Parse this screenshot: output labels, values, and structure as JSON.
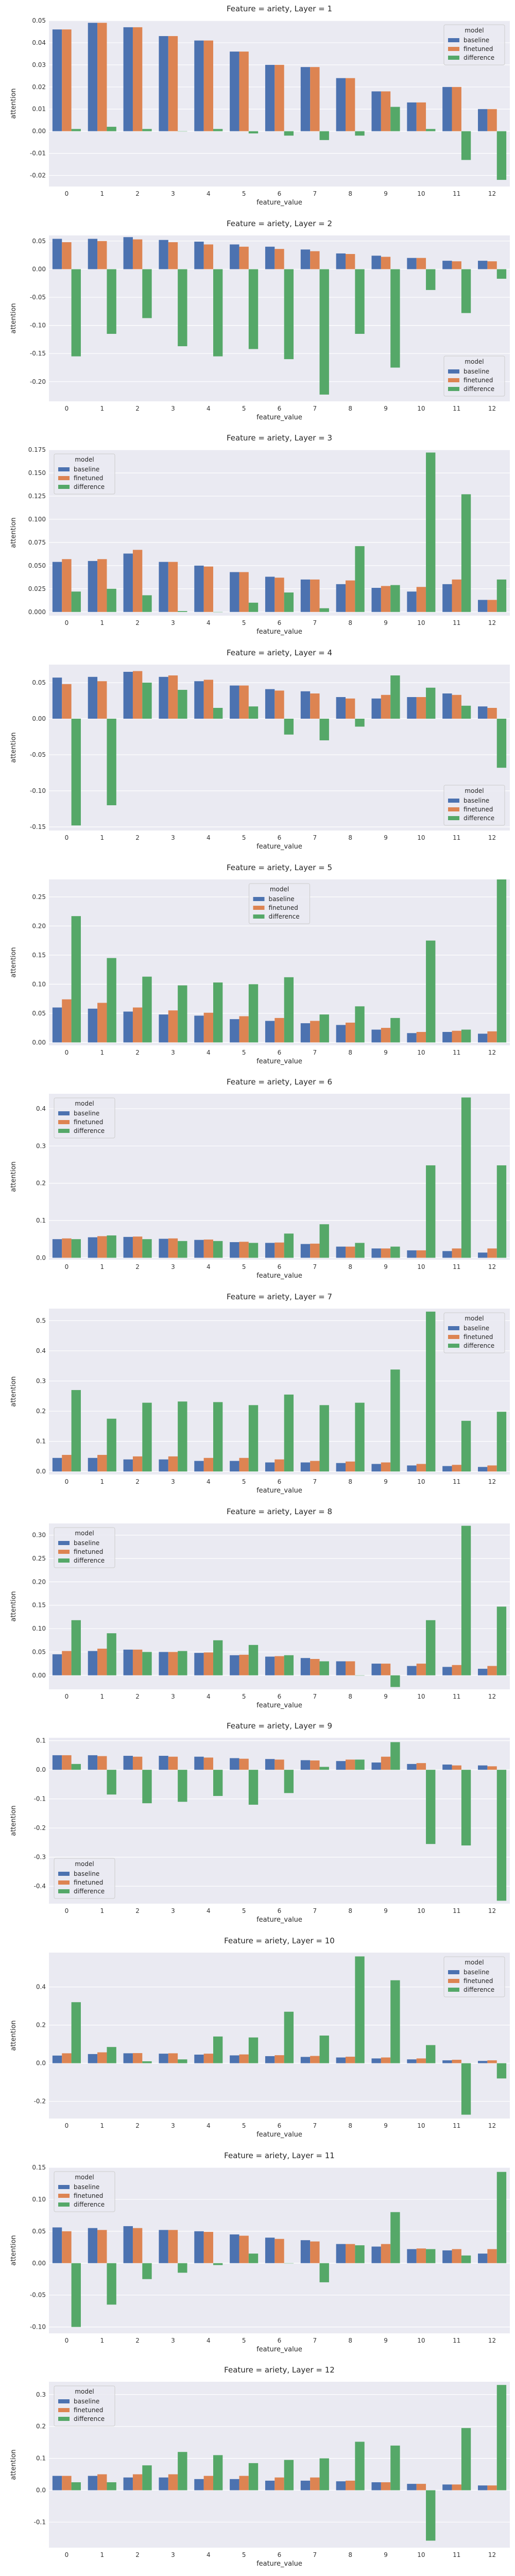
{
  "palette": {
    "baseline": "#4c72b0",
    "finetuned": "#dd8452",
    "difference": "#55a868",
    "plot_bg": "#eaeaf2",
    "grid": "#ffffff"
  },
  "chart_data": [
    {
      "type": "bar",
      "title": "Feature = ariety, Layer = 1",
      "xlabel": "feature_value",
      "ylabel": "attention",
      "categories": [
        "0",
        "1",
        "2",
        "3",
        "4",
        "5",
        "6",
        "7",
        "8",
        "9",
        "10",
        "11",
        "12"
      ],
      "ylim": [
        -0.025,
        0.05
      ],
      "yticks": [
        -0.02,
        -0.01,
        0.0,
        0.01,
        0.02,
        0.03,
        0.04,
        0.05
      ],
      "tick_decimals": 2,
      "legend_title": "model",
      "legend_position": "top-right",
      "series": [
        {
          "name": "baseline",
          "values": [
            0.046,
            0.049,
            0.047,
            0.043,
            0.041,
            0.036,
            0.03,
            0.029,
            0.024,
            0.018,
            0.013,
            0.02,
            0.01
          ]
        },
        {
          "name": "finetuned",
          "values": [
            0.046,
            0.049,
            0.047,
            0.043,
            0.041,
            0.036,
            0.03,
            0.029,
            0.024,
            0.018,
            0.013,
            0.02,
            0.01
          ]
        },
        {
          "name": "difference",
          "values": [
            0.001,
            0.002,
            0.001,
            0.0,
            0.001,
            -0.001,
            -0.002,
            -0.004,
            -0.002,
            0.011,
            0.001,
            -0.013,
            -0.022
          ]
        }
      ]
    },
    {
      "type": "bar",
      "title": "Feature = ariety, Layer = 2",
      "xlabel": "feature_value",
      "ylabel": "attention",
      "categories": [
        "0",
        "1",
        "2",
        "3",
        "4",
        "5",
        "6",
        "7",
        "8",
        "9",
        "10",
        "11",
        "12"
      ],
      "ylim": [
        -0.235,
        0.06
      ],
      "yticks": [
        -0.2,
        -0.15,
        -0.1,
        -0.05,
        0.0,
        0.05
      ],
      "tick_decimals": 2,
      "legend_title": "model",
      "legend_position": "bottom-right",
      "series": [
        {
          "name": "baseline",
          "values": [
            0.054,
            0.054,
            0.057,
            0.052,
            0.049,
            0.044,
            0.04,
            0.035,
            0.028,
            0.024,
            0.02,
            0.015,
            0.015
          ]
        },
        {
          "name": "finetuned",
          "values": [
            0.048,
            0.05,
            0.053,
            0.048,
            0.044,
            0.04,
            0.036,
            0.032,
            0.027,
            0.022,
            0.02,
            0.014,
            0.014
          ]
        },
        {
          "name": "difference",
          "values": [
            -0.155,
            -0.115,
            -0.087,
            -0.137,
            -0.155,
            -0.142,
            -0.16,
            -0.223,
            -0.115,
            -0.175,
            -0.037,
            -0.078,
            -0.017
          ]
        }
      ]
    },
    {
      "type": "bar",
      "title": "Feature = ariety, Layer = 3",
      "xlabel": "feature_value",
      "ylabel": "attention",
      "categories": [
        "0",
        "1",
        "2",
        "3",
        "4",
        "5",
        "6",
        "7",
        "8",
        "9",
        "10",
        "11",
        "12"
      ],
      "ylim": [
        -0.004,
        0.175
      ],
      "yticks": [
        0.0,
        0.025,
        0.05,
        0.075,
        0.1,
        0.125,
        0.15,
        0.175
      ],
      "tick_decimals": 3,
      "legend_title": "model",
      "legend_position": "top-left",
      "series": [
        {
          "name": "baseline",
          "values": [
            0.054,
            0.055,
            0.063,
            0.054,
            0.05,
            0.043,
            0.038,
            0.035,
            0.03,
            0.026,
            0.022,
            0.03,
            0.013
          ]
        },
        {
          "name": "finetuned",
          "values": [
            0.057,
            0.057,
            0.067,
            0.054,
            0.049,
            0.043,
            0.037,
            0.035,
            0.034,
            0.028,
            0.027,
            0.035,
            0.013
          ]
        },
        {
          "name": "difference",
          "values": [
            0.022,
            0.025,
            0.018,
            0.001,
            0.0,
            0.01,
            0.021,
            0.004,
            0.071,
            0.029,
            0.172,
            0.127,
            0.035
          ]
        }
      ]
    },
    {
      "type": "bar",
      "title": "Feature = ariety, Layer = 4",
      "xlabel": "feature_value",
      "ylabel": "attention",
      "categories": [
        "0",
        "1",
        "2",
        "3",
        "4",
        "5",
        "6",
        "7",
        "8",
        "9",
        "10",
        "11",
        "12"
      ],
      "ylim": [
        -0.155,
        0.075
      ],
      "yticks": [
        -0.15,
        -0.1,
        -0.05,
        0.0,
        0.05
      ],
      "tick_decimals": 2,
      "legend_title": "model",
      "legend_position": "bottom-right",
      "series": [
        {
          "name": "baseline",
          "values": [
            0.057,
            0.058,
            0.065,
            0.058,
            0.052,
            0.046,
            0.041,
            0.038,
            0.03,
            0.028,
            0.03,
            0.035,
            0.017
          ]
        },
        {
          "name": "finetuned",
          "values": [
            0.048,
            0.052,
            0.066,
            0.06,
            0.054,
            0.046,
            0.039,
            0.035,
            0.028,
            0.033,
            0.03,
            0.033,
            0.015
          ]
        },
        {
          "name": "difference",
          "values": [
            -0.148,
            -0.12,
            0.05,
            0.04,
            0.015,
            0.017,
            -0.022,
            -0.03,
            -0.011,
            0.06,
            0.043,
            0.018,
            -0.068
          ]
        }
      ]
    },
    {
      "type": "bar",
      "title": "Feature = ariety, Layer = 5",
      "xlabel": "feature_value",
      "ylabel": "attention",
      "categories": [
        "0",
        "1",
        "2",
        "3",
        "4",
        "5",
        "6",
        "7",
        "8",
        "9",
        "10",
        "11",
        "12"
      ],
      "ylim": [
        -0.005,
        0.28
      ],
      "yticks": [
        0.0,
        0.05,
        0.1,
        0.15,
        0.2,
        0.25
      ],
      "tick_decimals": 2,
      "legend_title": "model",
      "legend_position": "top-center",
      "series": [
        {
          "name": "baseline",
          "values": [
            0.06,
            0.058,
            0.053,
            0.048,
            0.046,
            0.04,
            0.037,
            0.033,
            0.03,
            0.022,
            0.016,
            0.018,
            0.015
          ]
        },
        {
          "name": "finetuned",
          "values": [
            0.074,
            0.068,
            0.06,
            0.055,
            0.051,
            0.045,
            0.042,
            0.037,
            0.034,
            0.025,
            0.018,
            0.02,
            0.019
          ]
        },
        {
          "name": "difference",
          "values": [
            0.217,
            0.145,
            0.113,
            0.098,
            0.103,
            0.1,
            0.112,
            0.048,
            0.062,
            0.042,
            0.175,
            0.022,
            0.28
          ]
        }
      ]
    },
    {
      "type": "bar",
      "title": "Feature = ariety, Layer = 6",
      "xlabel": "feature_value",
      "ylabel": "attention",
      "categories": [
        "0",
        "1",
        "2",
        "3",
        "4",
        "5",
        "6",
        "7",
        "8",
        "9",
        "10",
        "11",
        "12"
      ],
      "ylim": [
        -0.005,
        0.44
      ],
      "yticks": [
        0.0,
        0.1,
        0.2,
        0.3,
        0.4
      ],
      "tick_decimals": 1,
      "legend_title": "model",
      "legend_position": "top-left",
      "series": [
        {
          "name": "baseline",
          "values": [
            0.05,
            0.055,
            0.056,
            0.051,
            0.048,
            0.042,
            0.04,
            0.037,
            0.03,
            0.025,
            0.02,
            0.018,
            0.014
          ]
        },
        {
          "name": "finetuned",
          "values": [
            0.052,
            0.058,
            0.057,
            0.052,
            0.049,
            0.043,
            0.041,
            0.038,
            0.03,
            0.025,
            0.02,
            0.025,
            0.025
          ]
        },
        {
          "name": "difference",
          "values": [
            0.05,
            0.06,
            0.05,
            0.045,
            0.045,
            0.04,
            0.065,
            0.09,
            0.04,
            0.03,
            0.248,
            0.43,
            0.248
          ]
        }
      ]
    },
    {
      "type": "bar",
      "title": "Feature = ariety, Layer = 7",
      "xlabel": "feature_value",
      "ylabel": "attention",
      "categories": [
        "0",
        "1",
        "2",
        "3",
        "4",
        "5",
        "6",
        "7",
        "8",
        "9",
        "10",
        "11",
        "12"
      ],
      "ylim": [
        -0.01,
        0.54
      ],
      "yticks": [
        0.0,
        0.1,
        0.2,
        0.3,
        0.4,
        0.5
      ],
      "tick_decimals": 1,
      "legend_title": "model",
      "legend_position": "top-right",
      "series": [
        {
          "name": "baseline",
          "values": [
            0.045,
            0.045,
            0.04,
            0.04,
            0.035,
            0.035,
            0.03,
            0.03,
            0.028,
            0.025,
            0.02,
            0.018,
            0.015
          ]
        },
        {
          "name": "finetuned",
          "values": [
            0.055,
            0.055,
            0.05,
            0.05,
            0.045,
            0.045,
            0.04,
            0.035,
            0.033,
            0.03,
            0.025,
            0.022,
            0.02
          ]
        },
        {
          "name": "difference",
          "values": [
            0.27,
            0.175,
            0.228,
            0.232,
            0.23,
            0.22,
            0.255,
            0.22,
            0.228,
            0.338,
            0.53,
            0.168,
            0.198
          ]
        }
      ]
    },
    {
      "type": "bar",
      "title": "Feature = ariety, Layer = 8",
      "xlabel": "feature_value",
      "ylabel": "attention",
      "categories": [
        "0",
        "1",
        "2",
        "3",
        "4",
        "5",
        "6",
        "7",
        "8",
        "9",
        "10",
        "11",
        "12"
      ],
      "ylim": [
        -0.03,
        0.325
      ],
      "yticks": [
        0.0,
        0.05,
        0.1,
        0.15,
        0.2,
        0.25,
        0.3
      ],
      "tick_decimals": 2,
      "legend_title": "model",
      "legend_position": "top-left",
      "series": [
        {
          "name": "baseline",
          "values": [
            0.045,
            0.052,
            0.055,
            0.05,
            0.048,
            0.043,
            0.04,
            0.037,
            0.03,
            0.025,
            0.02,
            0.018,
            0.014
          ]
        },
        {
          "name": "finetuned",
          "values": [
            0.052,
            0.057,
            0.055,
            0.05,
            0.049,
            0.044,
            0.041,
            0.035,
            0.03,
            0.025,
            0.025,
            0.022,
            0.02
          ]
        },
        {
          "name": "difference",
          "values": [
            0.118,
            0.09,
            0.05,
            0.052,
            0.075,
            0.065,
            0.043,
            0.03,
            0.0,
            -0.025,
            0.118,
            0.32,
            0.147
          ]
        }
      ]
    },
    {
      "type": "bar",
      "title": "Feature = ariety, Layer = 9",
      "xlabel": "feature_value",
      "ylabel": "attention",
      "categories": [
        "0",
        "1",
        "2",
        "3",
        "4",
        "5",
        "6",
        "7",
        "8",
        "9",
        "10",
        "11",
        "12"
      ],
      "ylim": [
        -0.46,
        0.11
      ],
      "yticks": [
        -0.4,
        -0.3,
        -0.2,
        -0.1,
        0.0,
        0.1
      ],
      "tick_decimals": 1,
      "legend_title": "model",
      "legend_position": "bottom-left",
      "series": [
        {
          "name": "baseline",
          "values": [
            0.05,
            0.05,
            0.048,
            0.048,
            0.045,
            0.04,
            0.037,
            0.033,
            0.03,
            0.025,
            0.02,
            0.018,
            0.015
          ]
        },
        {
          "name": "finetuned",
          "values": [
            0.05,
            0.047,
            0.045,
            0.045,
            0.042,
            0.038,
            0.035,
            0.032,
            0.035,
            0.045,
            0.023,
            0.015,
            0.012
          ]
        },
        {
          "name": "difference",
          "values": [
            0.02,
            -0.085,
            -0.115,
            -0.11,
            -0.09,
            -0.12,
            -0.08,
            0.01,
            0.035,
            0.095,
            -0.255,
            -0.26,
            -0.45
          ]
        }
      ]
    },
    {
      "type": "bar",
      "title": "Feature = ariety, Layer = 10",
      "xlabel": "feature_value",
      "ylabel": "attention",
      "categories": [
        "0",
        "1",
        "2",
        "3",
        "4",
        "5",
        "6",
        "7",
        "8",
        "9",
        "10",
        "11",
        "12"
      ],
      "ylim": [
        -0.29,
        0.58
      ],
      "yticks": [
        -0.2,
        0.0,
        0.2,
        0.4
      ],
      "tick_decimals": 1,
      "legend_title": "model",
      "legend_position": "top-right",
      "series": [
        {
          "name": "baseline",
          "values": [
            0.04,
            0.048,
            0.052,
            0.05,
            0.045,
            0.041,
            0.037,
            0.033,
            0.03,
            0.025,
            0.02,
            0.015,
            0.012
          ]
        },
        {
          "name": "finetuned",
          "values": [
            0.052,
            0.057,
            0.053,
            0.052,
            0.05,
            0.046,
            0.042,
            0.038,
            0.034,
            0.03,
            0.025,
            0.018,
            0.015
          ]
        },
        {
          "name": "difference",
          "values": [
            0.32,
            0.085,
            0.01,
            0.02,
            0.14,
            0.135,
            0.27,
            0.145,
            0.56,
            0.435,
            0.095,
            -0.27,
            -0.08
          ]
        }
      ]
    },
    {
      "type": "bar",
      "title": "Feature = ariety, Layer = 11",
      "xlabel": "feature_value",
      "ylabel": "attention",
      "categories": [
        "0",
        "1",
        "2",
        "3",
        "4",
        "5",
        "6",
        "7",
        "8",
        "9",
        "10",
        "11",
        "12"
      ],
      "ylim": [
        -0.11,
        0.15
      ],
      "yticks": [
        -0.1,
        -0.05,
        0.0,
        0.05,
        0.1,
        0.15
      ],
      "tick_decimals": 2,
      "legend_title": "model",
      "legend_position": "top-left",
      "series": [
        {
          "name": "baseline",
          "values": [
            0.056,
            0.055,
            0.058,
            0.052,
            0.05,
            0.045,
            0.04,
            0.036,
            0.03,
            0.026,
            0.022,
            0.02,
            0.015
          ]
        },
        {
          "name": "finetuned",
          "values": [
            0.05,
            0.052,
            0.055,
            0.052,
            0.049,
            0.043,
            0.038,
            0.034,
            0.03,
            0.03,
            0.023,
            0.022,
            0.022
          ]
        },
        {
          "name": "difference",
          "values": [
            -0.1,
            -0.065,
            -0.025,
            -0.015,
            -0.003,
            0.015,
            0.0,
            -0.03,
            0.028,
            0.08,
            0.022,
            0.012,
            0.143
          ]
        }
      ]
    },
    {
      "type": "bar",
      "title": "Feature = ariety, Layer = 12",
      "xlabel": "feature_value",
      "ylabel": "attention",
      "categories": [
        "0",
        "1",
        "2",
        "3",
        "4",
        "5",
        "6",
        "7",
        "8",
        "9",
        "10",
        "11",
        "12"
      ],
      "ylim": [
        -0.18,
        0.34
      ],
      "yticks": [
        -0.1,
        0.0,
        0.1,
        0.2,
        0.3
      ],
      "tick_decimals": 1,
      "legend_title": "model",
      "legend_position": "top-left",
      "series": [
        {
          "name": "baseline",
          "values": [
            0.045,
            0.045,
            0.04,
            0.04,
            0.035,
            0.035,
            0.03,
            0.03,
            0.028,
            0.025,
            0.02,
            0.018,
            0.015
          ]
        },
        {
          "name": "finetuned",
          "values": [
            0.045,
            0.05,
            0.05,
            0.05,
            0.045,
            0.045,
            0.04,
            0.04,
            0.03,
            0.025,
            0.02,
            0.018,
            0.015
          ]
        },
        {
          "name": "difference",
          "values": [
            0.025,
            0.025,
            0.078,
            0.12,
            0.11,
            0.085,
            0.095,
            0.1,
            0.152,
            0.14,
            -0.158,
            0.195,
            0.33
          ]
        }
      ]
    }
  ]
}
